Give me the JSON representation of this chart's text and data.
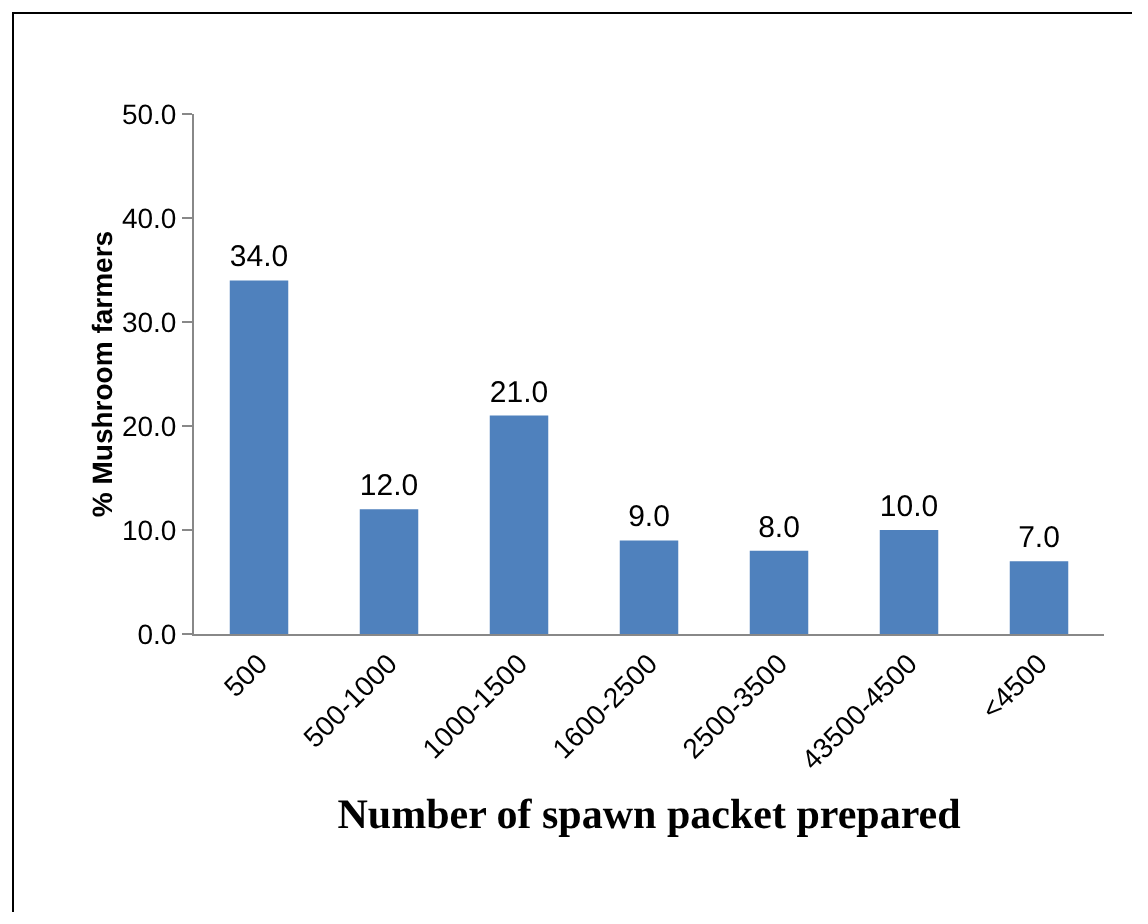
{
  "chart_data": {
    "type": "bar",
    "xlabel": "Number of spawn packet prepared",
    "ylabel": "% Mushroom farmers",
    "categories": [
      "500",
      "500-1000",
      "1000-1500",
      "1600-2500",
      "2500-3500",
      "43500-4500",
      "<4500"
    ],
    "values": [
      34,
      12,
      21,
      9,
      8,
      10,
      7
    ],
    "value_labels": [
      "34.0",
      "12.0",
      "21.0",
      "9.0",
      "8.0",
      "10.0",
      "7.0"
    ],
    "color": "#4f81bd",
    "ylim": [
      0,
      50
    ],
    "yticks": [
      {
        "value": 0,
        "label": "0.0"
      },
      {
        "value": 10,
        "label": "10.0"
      },
      {
        "value": 20,
        "label": "20.0"
      },
      {
        "value": 30,
        "label": "30.0"
      },
      {
        "value": 40,
        "label": "40.0"
      },
      {
        "value": 50,
        "label": "50.0"
      }
    ],
    "grid": false,
    "legend": false
  }
}
